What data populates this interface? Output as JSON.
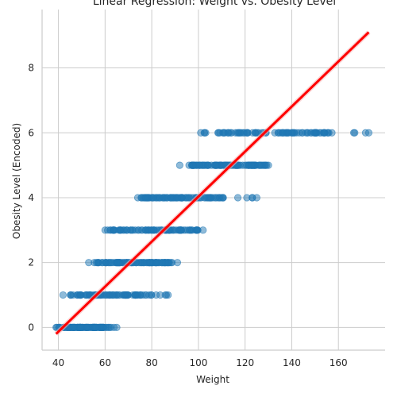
{
  "chart_data": {
    "type": "scatter",
    "title": "Linear Regression: Weight vs. Obesity Level",
    "xlabel": "Weight",
    "ylabel": "Obesity Level (Encoded)",
    "xlim": [
      33,
      180
    ],
    "ylim": [
      -0.7,
      9.8
    ],
    "x_ticks": [
      40,
      60,
      80,
      100,
      120,
      140,
      160
    ],
    "y_ticks": [
      0,
      2,
      4,
      6,
      8
    ],
    "grid": true,
    "legend": "none",
    "colors": {
      "points": "#1f77b4",
      "regression": "#ff0000",
      "grid": "#cccccc",
      "axis": "#cccccc"
    },
    "regression_line": {
      "x": [
        39,
        173
      ],
      "y": [
        -0.2,
        9.1
      ]
    },
    "series": [
      {
        "level": 0,
        "x_range": [
          39,
          65
        ],
        "dense": [
          40,
          62
        ]
      },
      {
        "level": 1,
        "x_range": [
          42,
          87
        ],
        "dense": [
          45,
          80
        ]
      },
      {
        "level": 2,
        "x_range": [
          53,
          91
        ],
        "dense": [
          56,
          89
        ]
      },
      {
        "level": 3,
        "x_range": [
          60,
          102
        ],
        "dense": [
          62,
          100
        ]
      },
      {
        "level": 4,
        "x_range": [
          74,
          125
        ],
        "dense": [
          75,
          112
        ]
      },
      {
        "level": 5,
        "x_range": [
          92,
          130
        ],
        "dense": [
          97,
          130
        ]
      },
      {
        "level": 6,
        "x_range": [
          101,
          173
        ],
        "dense": [
          102,
          156
        ]
      }
    ]
  }
}
